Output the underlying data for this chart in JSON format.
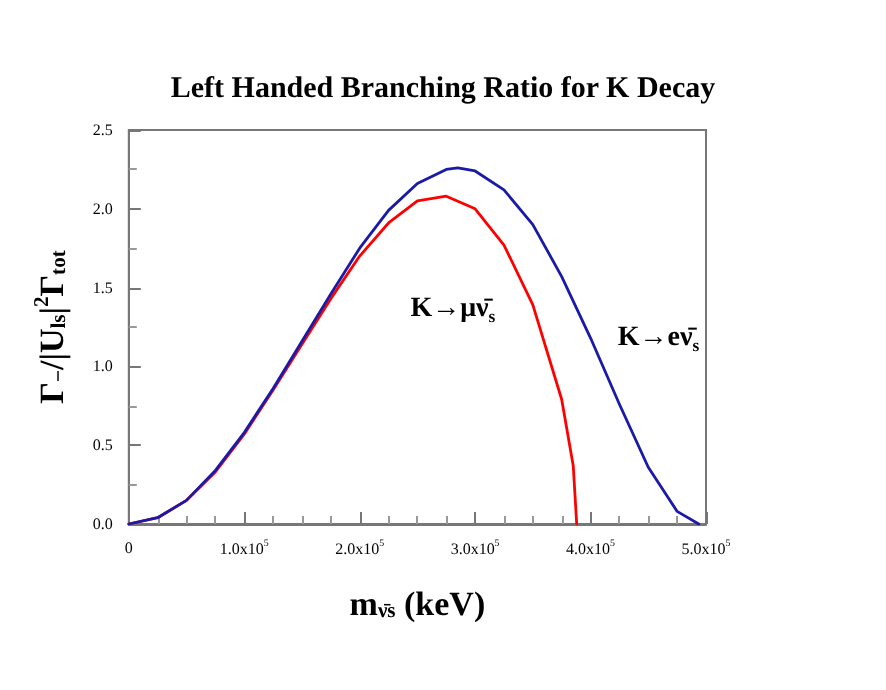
{
  "chart_data": {
    "type": "line",
    "title": "Left Handed Branching Ratio for K Decay",
    "xlabel": "m$_{ν̄s}$ (keV)",
    "ylabel": "Γ$_{−}$/|U$_{ls}$|$^{2}$Γ$_{tot}$",
    "xlim": [
      0,
      500000
    ],
    "ylim": [
      0,
      2.5
    ],
    "xticks": [
      {
        "value": 0,
        "label": "0"
      },
      {
        "value": 100000,
        "label": "1.0x10$^{5}$"
      },
      {
        "value": 200000,
        "label": "2.0x10$^{5}$"
      },
      {
        "value": 300000,
        "label": "3.0x10$^{5}$"
      },
      {
        "value": 400000,
        "label": "4.0x10$^{5}$"
      },
      {
        "value": 500000,
        "label": "5.0x10$^{5}$"
      }
    ],
    "yticks": [
      {
        "value": 0,
        "label": "0.0"
      },
      {
        "value": 0.5,
        "label": "0.5"
      },
      {
        "value": 1,
        "label": "1.0"
      },
      {
        "value": 1.5,
        "label": "1.5"
      },
      {
        "value": 2,
        "label": "2.0"
      },
      {
        "value": 2.5,
        "label": "2.5"
      }
    ],
    "grid": false,
    "marker": "none",
    "line_style": "solid",
    "series": [
      {
        "name": "K→μν̄$_{s}$",
        "color": "#ff0000",
        "x": [
          0,
          25000,
          50000,
          75000,
          100000,
          125000,
          150000,
          175000,
          200000,
          225000,
          250000,
          275000,
          300000,
          325000,
          350000,
          375000,
          385000,
          388000
        ],
        "values": [
          0,
          0.04,
          0.15,
          0.33,
          0.57,
          0.85,
          1.14,
          1.43,
          1.7,
          1.91,
          2.05,
          2.08,
          2.0,
          1.77,
          1.39,
          0.79,
          0.37,
          0
        ]
      },
      {
        "name": "K→eν̄$_{s}$",
        "color": "#1a1aa8",
        "x": [
          0,
          25000,
          50000,
          75000,
          100000,
          125000,
          150000,
          175000,
          200000,
          225000,
          250000,
          275000,
          285000,
          300000,
          325000,
          350000,
          375000,
          400000,
          425000,
          450000,
          475000,
          493700
        ],
        "values": [
          0,
          0.04,
          0.15,
          0.34,
          0.58,
          0.86,
          1.16,
          1.46,
          1.75,
          1.99,
          2.16,
          2.25,
          2.26,
          2.24,
          2.12,
          1.9,
          1.57,
          1.18,
          0.76,
          0.36,
          0.08,
          0
        ]
      }
    ]
  }
}
